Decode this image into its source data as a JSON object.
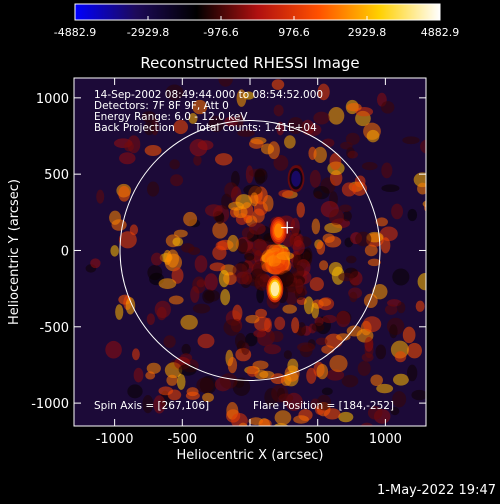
{
  "colorbar": {
    "tick_labels": [
      "-4882.9",
      "-2929.8",
      "-976.6",
      "976.6",
      "2929.8",
      "4882.9"
    ],
    "range": [
      -4882.9,
      4882.9
    ],
    "colormap_stops": [
      "#0000ff",
      "#1d0a5a",
      "#000000",
      "#b01010",
      "#ff5000",
      "#ffd000",
      "#ffffff"
    ]
  },
  "chart_data": {
    "type": "heatmap",
    "title": "Reconstructed RHESSI Image",
    "xlabel": "Heliocentric X (arcsec)",
    "ylabel": "Heliocentric Y (arcsec)",
    "xlim": [
      -1300,
      1300
    ],
    "ylim": [
      -1150,
      1130
    ],
    "xticks": [
      -1000,
      -500,
      0,
      500,
      1000
    ],
    "yticks": [
      -1000,
      -500,
      0,
      500,
      1000
    ],
    "xtick_labels": [
      "-1000",
      "-500",
      "0",
      "500",
      "1000"
    ],
    "ytick_labels": [
      "-1000",
      "-500",
      "0",
      "500",
      "1000"
    ],
    "solar_limb_radius": 960,
    "sun_center_marker": [
      275,
      150
    ],
    "value_range": [
      -4882.9,
      4882.9
    ],
    "peak_sources": [
      {
        "x": 184,
        "y": -252,
        "value": 4882.9
      },
      {
        "x": 340,
        "y": 470,
        "value": -4200
      },
      {
        "x": 210,
        "y": 130,
        "value": 2600
      }
    ],
    "info_lines": [
      "14-Sep-2002 08:49:44.000 to 08:54:52.000",
      "Detectors: 7F 8F 9F, Att 0",
      "Energy Range: 6.0 - 12.0 keV",
      "Back Projection      Total counts: 1.41E+04"
    ],
    "spin_axis": "Spin Axis = [267,106]",
    "flare_position": "Flare Position = [184,-252]"
  },
  "timestamp": "1-May-2022 19:47"
}
